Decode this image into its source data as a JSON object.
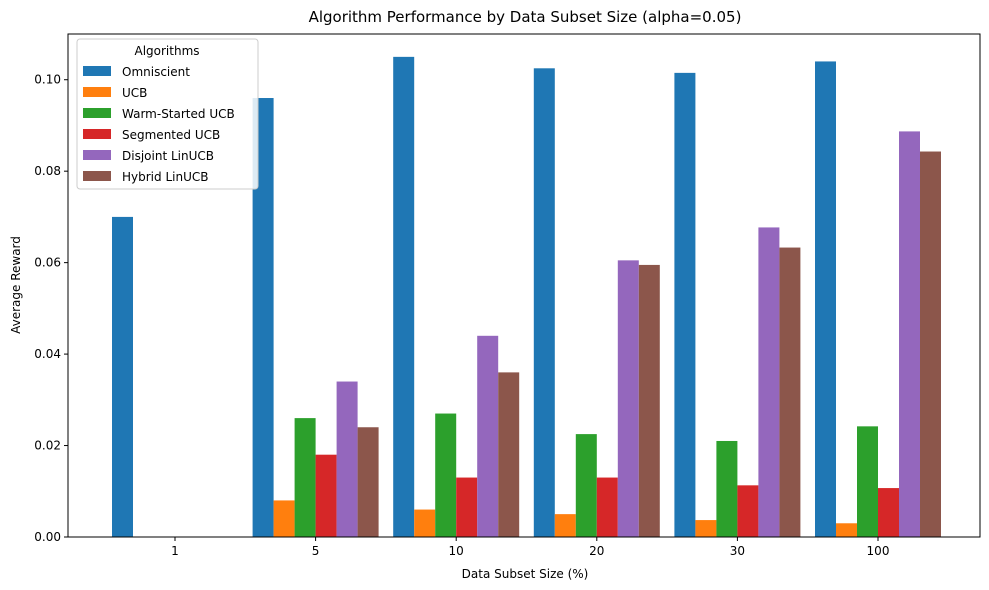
{
  "chart_data": {
    "type": "bar",
    "title": "Algorithm Performance by Data Subset Size (alpha=0.05)",
    "xlabel": "Data Subset Size (%)",
    "ylabel": "Average Reward",
    "categories": [
      "1",
      "5",
      "10",
      "20",
      "30",
      "100"
    ],
    "ylim": [
      0,
      0.11
    ],
    "yticks": [
      "0.00",
      "0.02",
      "0.04",
      "0.06",
      "0.08",
      "0.10"
    ],
    "grid": false,
    "legend": {
      "title": "Algorithms",
      "placement": "top-left"
    },
    "series": [
      {
        "name": "Omniscient",
        "color": "#1f77b4",
        "values": [
          0.07,
          0.096,
          0.105,
          0.1025,
          0.1015,
          0.104
        ]
      },
      {
        "name": "UCB",
        "color": "#ff7f0e",
        "values": [
          0,
          0.008,
          0.006,
          0.005,
          0.0037,
          0.003
        ]
      },
      {
        "name": "Warm-Started UCB",
        "color": "#2ca02c",
        "values": [
          0,
          0.026,
          0.027,
          0.0225,
          0.021,
          0.0242
        ]
      },
      {
        "name": "Segmented UCB",
        "color": "#d62728",
        "values": [
          0,
          0.018,
          0.013,
          0.013,
          0.0113,
          0.0107
        ]
      },
      {
        "name": "Disjoint LinUCB",
        "color": "#9467bd",
        "values": [
          0,
          0.034,
          0.044,
          0.0605,
          0.0677,
          0.0887
        ]
      },
      {
        "name": "Hybrid LinUCB",
        "color": "#8c564b",
        "values": [
          0,
          0.024,
          0.036,
          0.0595,
          0.0633,
          0.0843
        ]
      }
    ]
  }
}
